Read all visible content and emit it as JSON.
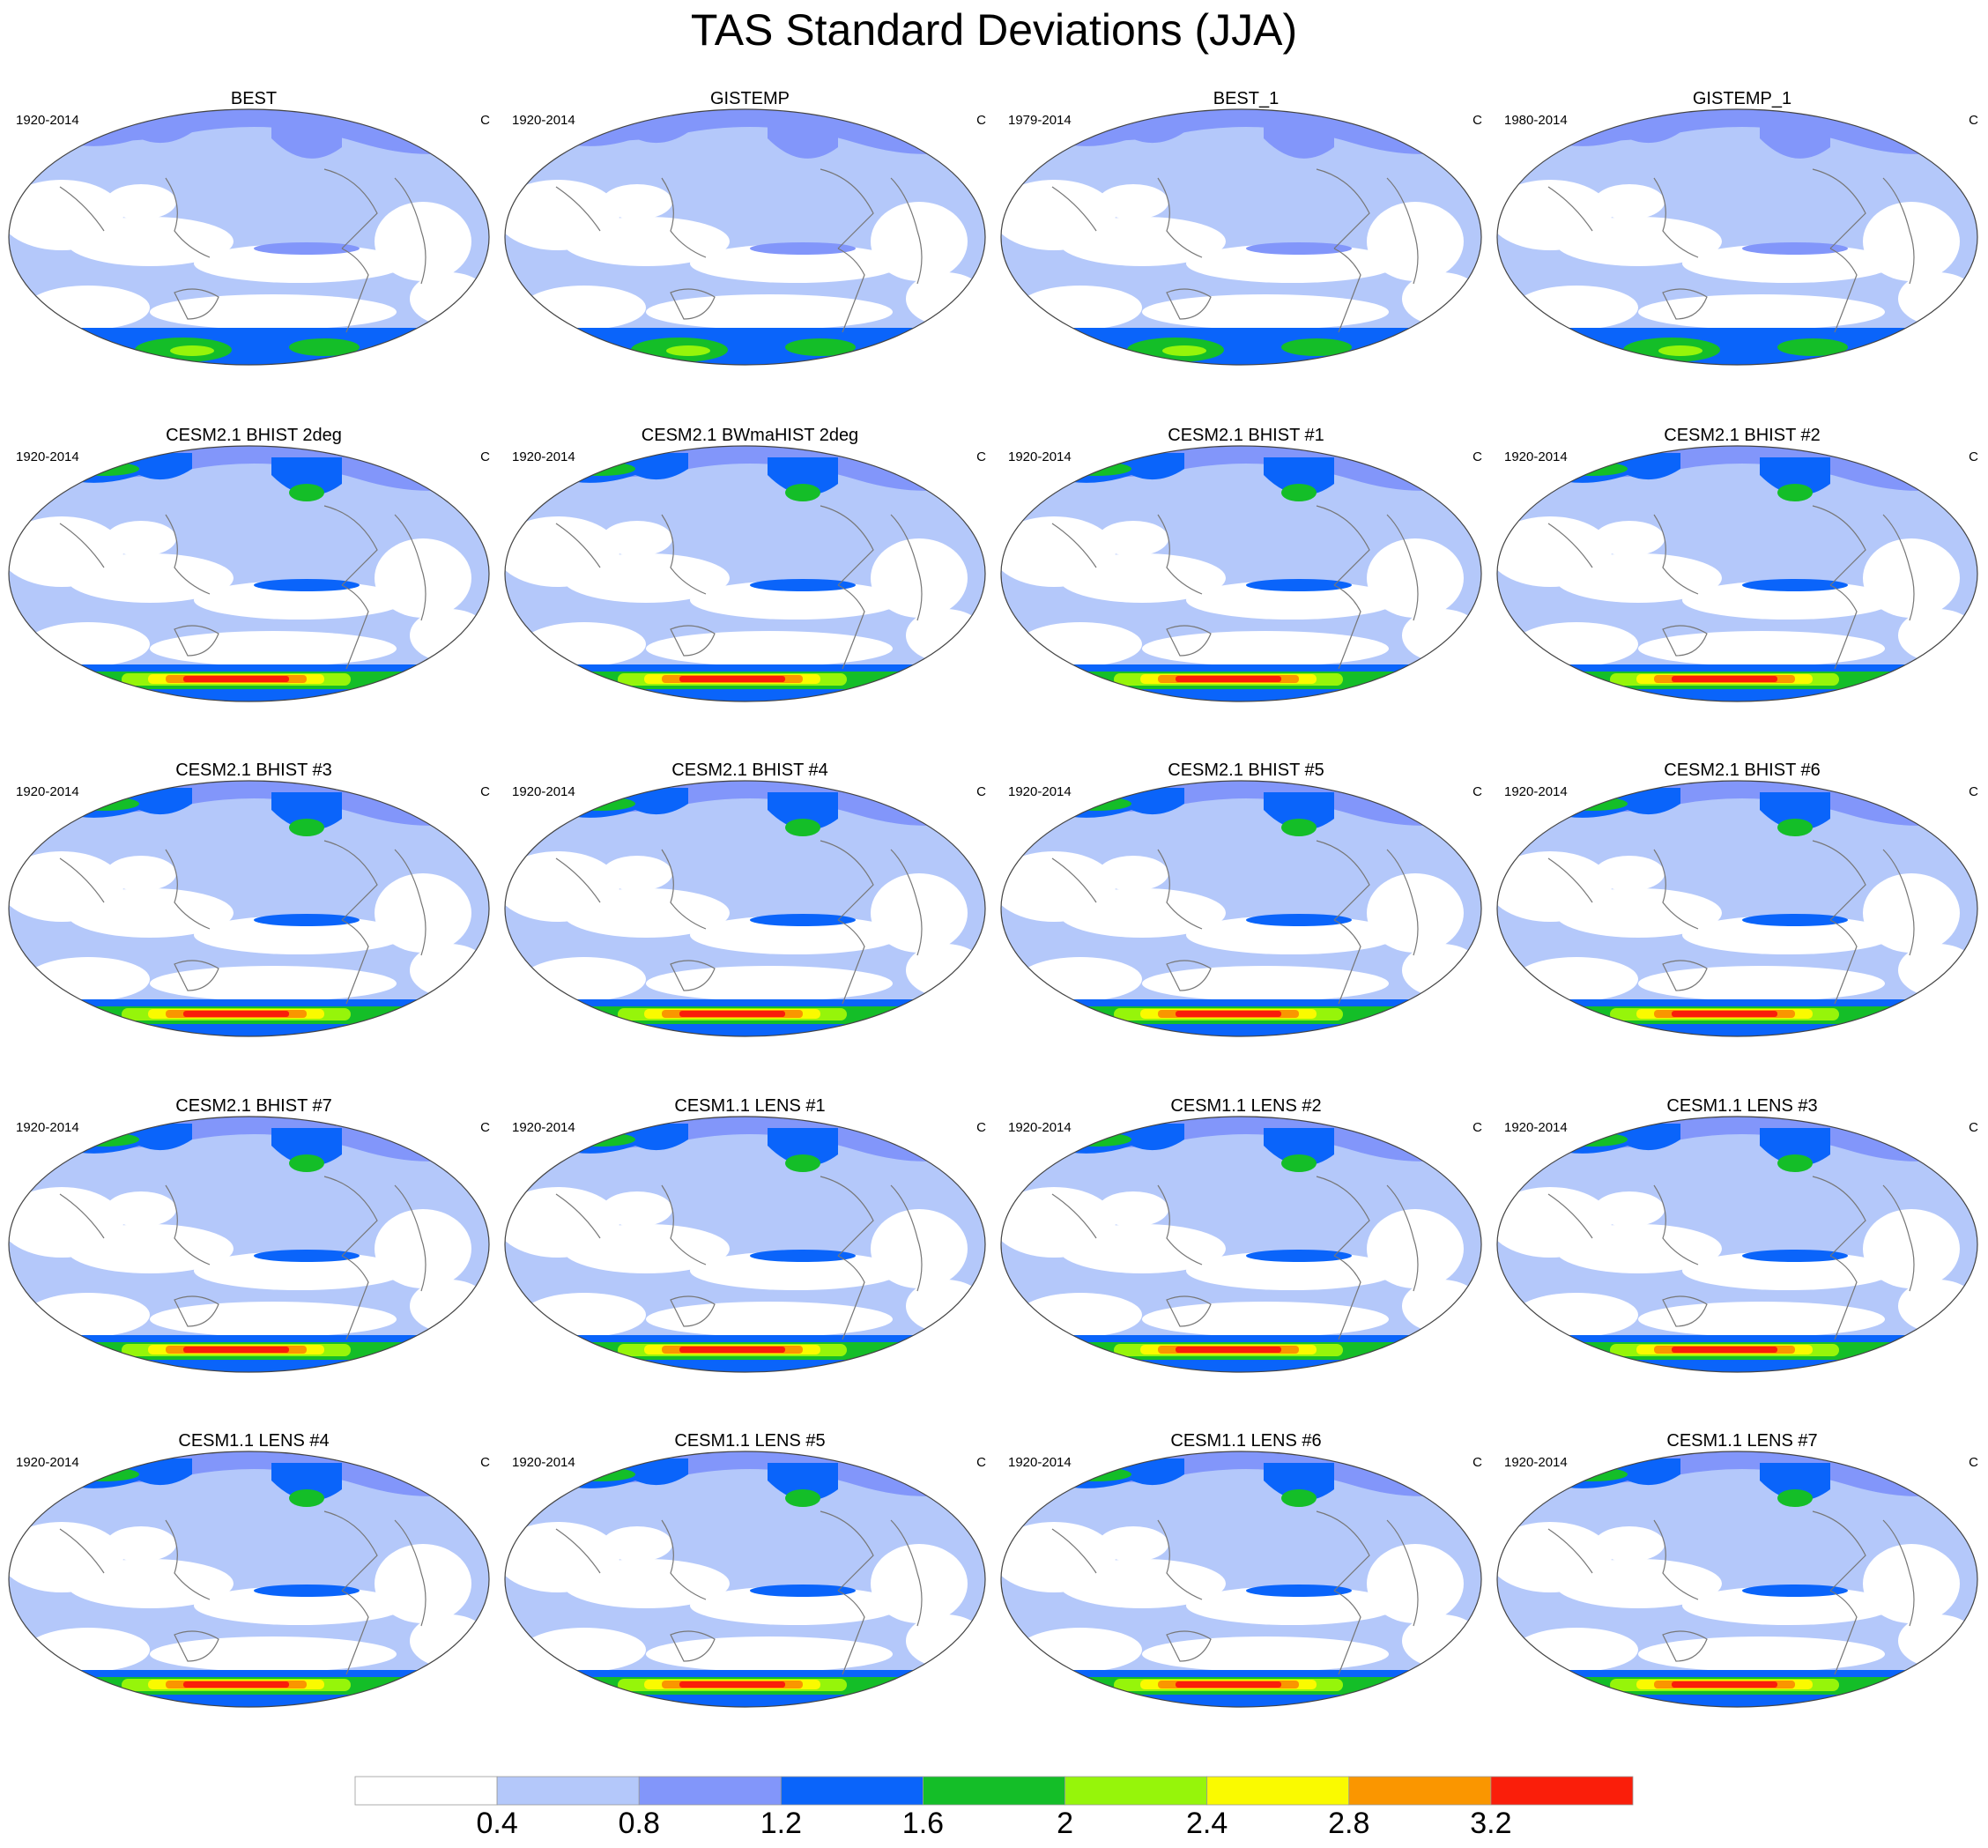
{
  "title": "TAS Standard Deviations (JJA)",
  "panels": [
    {
      "title": "BEST",
      "years": "1920-2014",
      "unit": "C",
      "kind": "obs"
    },
    {
      "title": "GISTEMP",
      "years": "1920-2014",
      "unit": "C",
      "kind": "obs"
    },
    {
      "title": "BEST_1",
      "years": "1979-2014",
      "unit": "C",
      "kind": "obs"
    },
    {
      "title": "GISTEMP_1",
      "years": "1980-2014",
      "unit": "C",
      "kind": "obs"
    },
    {
      "title": "CESM2.1 BHIST 2deg",
      "years": "1920-2014",
      "unit": "C",
      "kind": "cesm2"
    },
    {
      "title": "CESM2.1 BWmaHIST 2deg",
      "years": "1920-2014",
      "unit": "C",
      "kind": "cesm2"
    },
    {
      "title": "CESM2.1 BHIST #1",
      "years": "1920-2014",
      "unit": "C",
      "kind": "cesm2"
    },
    {
      "title": "CESM2.1 BHIST #2",
      "years": "1920-2014",
      "unit": "C",
      "kind": "cesm2"
    },
    {
      "title": "CESM2.1 BHIST #3",
      "years": "1920-2014",
      "unit": "C",
      "kind": "cesm2"
    },
    {
      "title": "CESM2.1 BHIST #4",
      "years": "1920-2014",
      "unit": "C",
      "kind": "cesm2"
    },
    {
      "title": "CESM2.1 BHIST #5",
      "years": "1920-2014",
      "unit": "C",
      "kind": "cesm2"
    },
    {
      "title": "CESM2.1 BHIST #6",
      "years": "1920-2014",
      "unit": "C",
      "kind": "cesm2"
    },
    {
      "title": "CESM2.1 BHIST #7",
      "years": "1920-2014",
      "unit": "C",
      "kind": "cesm2"
    },
    {
      "title": "CESM1.1 LENS #1",
      "years": "1920-2014",
      "unit": "C",
      "kind": "lens"
    },
    {
      "title": "CESM1.1 LENS #2",
      "years": "1920-2014",
      "unit": "C",
      "kind": "lens"
    },
    {
      "title": "CESM1.1 LENS #3",
      "years": "1920-2014",
      "unit": "C",
      "kind": "lens"
    },
    {
      "title": "CESM1.1 LENS #4",
      "years": "1920-2014",
      "unit": "C",
      "kind": "lens"
    },
    {
      "title": "CESM1.1 LENS #5",
      "years": "1920-2014",
      "unit": "C",
      "kind": "lens"
    },
    {
      "title": "CESM1.1 LENS #6",
      "years": "1920-2014",
      "unit": "C",
      "kind": "lens"
    },
    {
      "title": "CESM1.1 LENS #7",
      "years": "1920-2014",
      "unit": "C",
      "kind": "lens"
    }
  ],
  "colorbar": {
    "colors": [
      "#ffffff",
      "#b4c8fa",
      "#8296fa",
      "#0a64fa",
      "#14be28",
      "#96f50a",
      "#fafa00",
      "#fa9600",
      "#fa1e0a"
    ],
    "labels": [
      "0.4",
      "0.8",
      "1.2",
      "1.6",
      "2",
      "2.4",
      "2.8",
      "3.2"
    ]
  },
  "map_colors": {
    "ocean_low": "#ffffff",
    "level_1": "#b4c8fa",
    "level_2": "#8296fa",
    "level_3": "#0a64fa",
    "level_4": "#14be28",
    "level_5": "#96f50a",
    "level_6": "#fafa00",
    "level_7": "#fa9600",
    "level_8": "#fa1e0a",
    "coastline": "#777777"
  }
}
